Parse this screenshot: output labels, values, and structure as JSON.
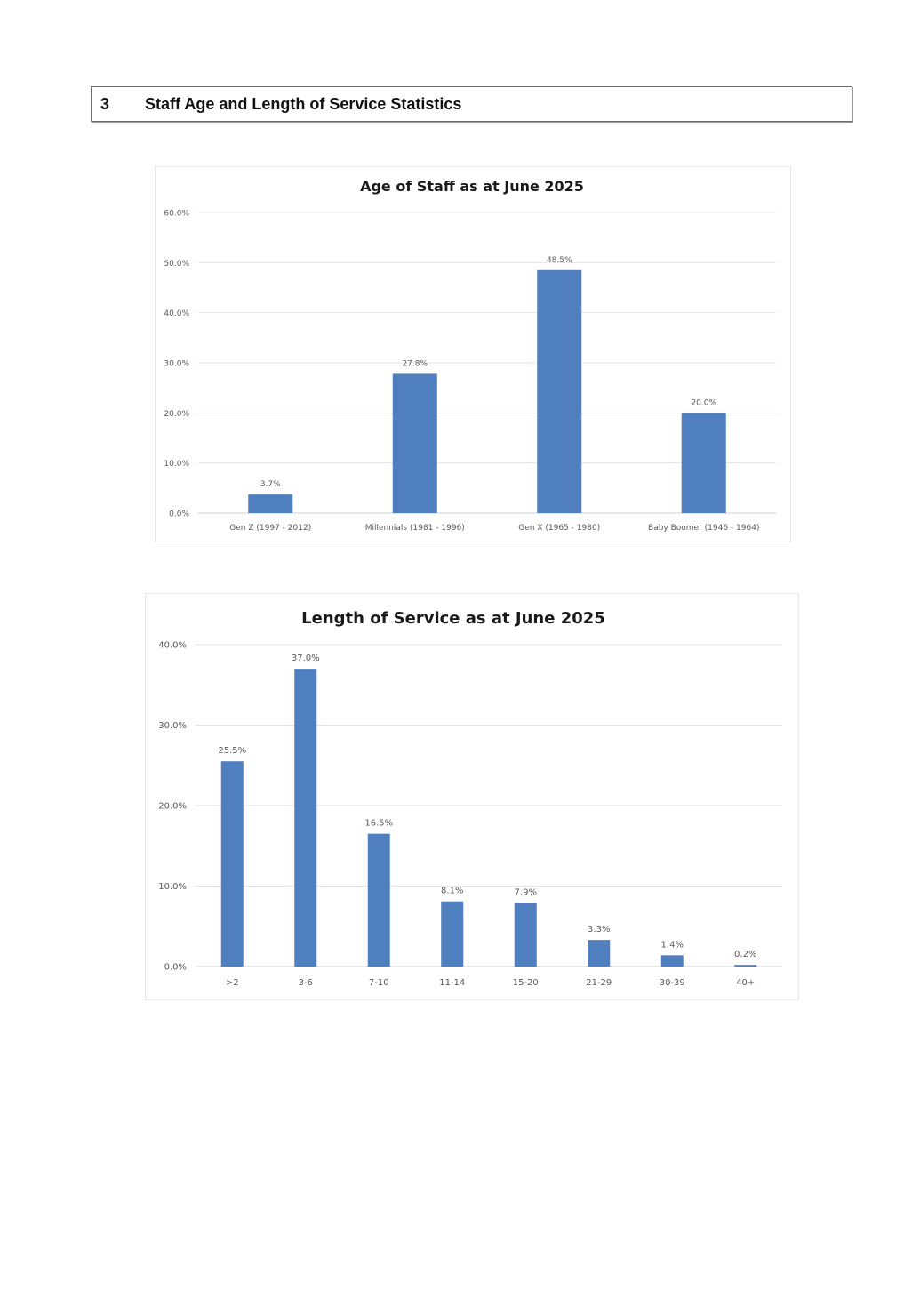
{
  "section": {
    "number": "3",
    "title": "Staff Age and Length of Service Statistics"
  },
  "colors": {
    "bar": "#4f7fbf",
    "grid": "#e3e3e3",
    "axis_text": "#595959",
    "title_text": "#1a1a1a"
  },
  "chart_data": [
    {
      "type": "bar",
      "title": "Age of Staff as at June 2025",
      "xlabel": "",
      "ylabel": "",
      "categories": [
        "Gen Z (1997 - 2012)",
        "Millennials (1981 - 1996)",
        "Gen X (1965 - 1980)",
        "Baby Boomer (1946 - 1964)"
      ],
      "values": [
        3.7,
        27.8,
        48.5,
        20.0
      ],
      "value_labels": [
        "3.7%",
        "27.8%",
        "48.5%",
        "20.0%"
      ],
      "ylim": [
        0,
        60
      ],
      "yticks": [
        0,
        10,
        20,
        30,
        40,
        50,
        60
      ],
      "ytick_labels": [
        "0.0%",
        "10.0%",
        "20.0%",
        "30.0%",
        "40.0%",
        "50.0%",
        "60.0%"
      ],
      "grid": true,
      "legend": "none"
    },
    {
      "type": "bar",
      "title": "Length of Service as at June 2025",
      "xlabel": "",
      "ylabel": "",
      "categories": [
        ">2",
        "3-6",
        "7-10",
        "11-14",
        "15-20",
        "21-29",
        "30-39",
        "40+"
      ],
      "values": [
        25.5,
        37.0,
        16.5,
        8.1,
        7.9,
        3.3,
        1.4,
        0.2
      ],
      "value_labels": [
        "25.5%",
        "37.0%",
        "16.5%",
        "8.1%",
        "7.9%",
        "3.3%",
        "1.4%",
        "0.2%"
      ],
      "ylim": [
        0,
        40
      ],
      "yticks": [
        0,
        10,
        20,
        30,
        40
      ],
      "ytick_labels": [
        "0.0%",
        "10.0%",
        "20.0%",
        "30.0%",
        "40.0%"
      ],
      "grid": true,
      "legend": "none"
    }
  ]
}
